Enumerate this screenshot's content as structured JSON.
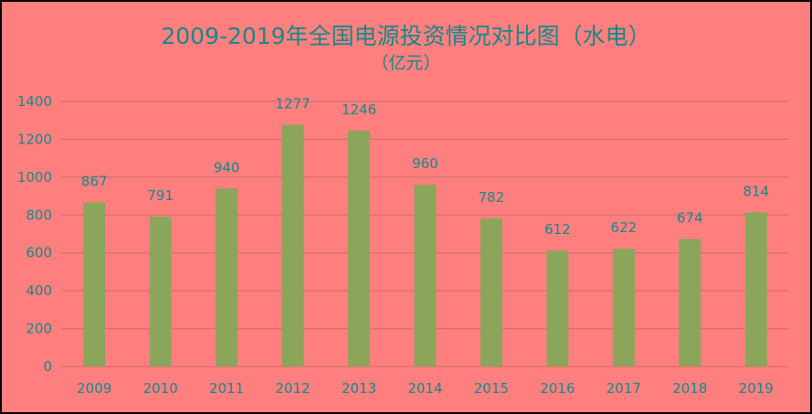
{
  "chart_data": {
    "type": "bar",
    "title": "2009-2019年全国电源投资情况对比图（水电）",
    "subtitle": "（亿元）",
    "xlabel": "",
    "ylabel": "",
    "categories": [
      "2009",
      "2010",
      "2011",
      "2012",
      "2013",
      "2014",
      "2015",
      "2016",
      "2017",
      "2018",
      "2019"
    ],
    "values": [
      867,
      791,
      940,
      1277,
      1246,
      960,
      782,
      612,
      622,
      674,
      814
    ],
    "ylim": [
      0,
      1400
    ],
    "yticks": [
      0,
      200,
      400,
      600,
      800,
      1000,
      1200,
      1400
    ],
    "grid": true,
    "legend": "none",
    "data_labels": true,
    "colors": {
      "background": "#FF7F7F",
      "bar": "#8BA65A",
      "text": "#128A8A",
      "grid": "#D46F6F"
    }
  }
}
